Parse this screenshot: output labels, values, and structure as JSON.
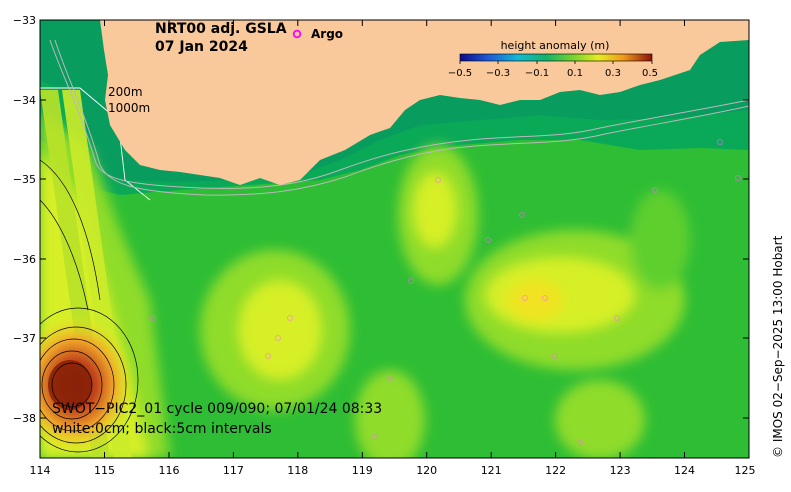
{
  "title": {
    "product": "NRT00 adj. GSLA",
    "date": "07 Jan 2024"
  },
  "legend": {
    "marker": "o",
    "label": "Argo",
    "marker_color": "#ff00ff"
  },
  "colorbar": {
    "title": "height anomaly (m)",
    "ticks": [
      "−0.5",
      "−0.3",
      "−0.1",
      "0.1",
      "0.3",
      "0.5"
    ]
  },
  "contour_labels": {
    "shallow": "200m",
    "deep": "1000m"
  },
  "swot": {
    "pass": "SWOT−PIC2_01 cycle 009/090; 07/01/24 08:33",
    "intervals": "white:0cm; black:5cm intervals"
  },
  "axes": {
    "x_ticks": [
      "114",
      "115",
      "116",
      "117",
      "118",
      "119",
      "120",
      "121",
      "122",
      "123",
      "124",
      "125"
    ],
    "y_ticks": [
      "−33",
      "−34",
      "−35",
      "−36",
      "−37",
      "−38"
    ]
  },
  "credit": "© IMOS 02−Sep−2025 13:00 Hobart",
  "colors": {
    "land": "#f9c89b",
    "ocean_base": "#2ebd35",
    "shelf": "#0aa958",
    "positive_1": "#8fdc2a",
    "positive_2": "#d6ef25",
    "positive_3": "#f1e321",
    "eddy_core": "#9c2a10"
  }
}
